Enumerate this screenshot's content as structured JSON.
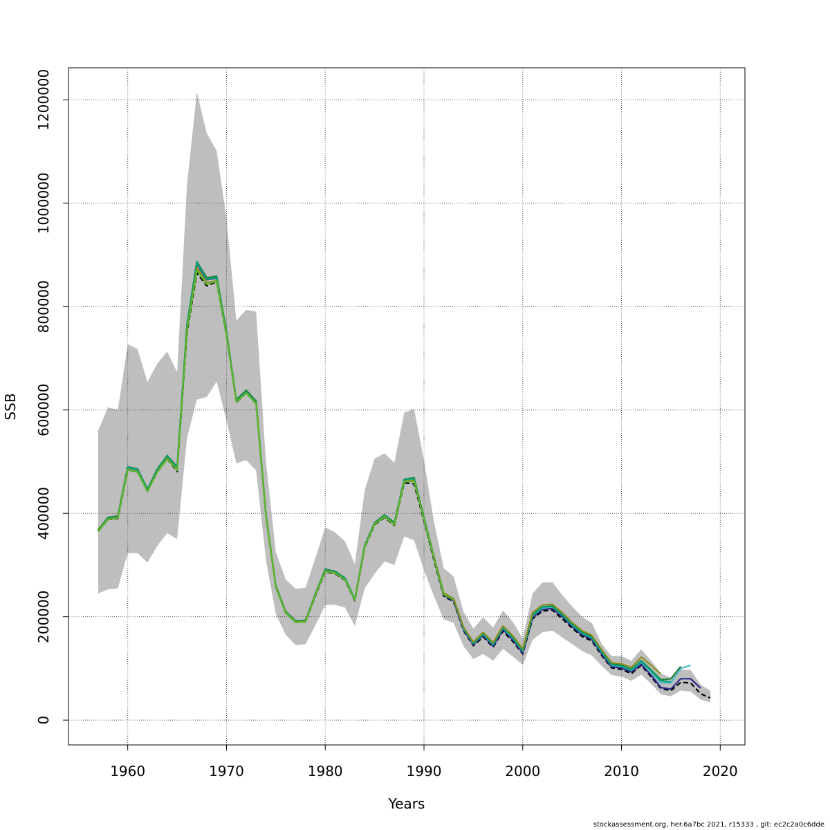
{
  "chart_data": {
    "type": "line",
    "xlabel": "Years",
    "ylabel": "SSB",
    "xlim": [
      1954,
      2022.5
    ],
    "ylim": [
      -48000,
      1262000
    ],
    "x_ticks": [
      1960,
      1970,
      1980,
      1990,
      2000,
      2010,
      2020
    ],
    "x_tick_labels": [
      "1960",
      "1970",
      "1980",
      "1990",
      "2000",
      "2010",
      "2020"
    ],
    "y_ticks": [
      0,
      200000,
      400000,
      600000,
      800000,
      1000000,
      1200000
    ],
    "y_tick_labels": [
      "0",
      "200000",
      "400000",
      "600000",
      "800000",
      "1000000",
      "1200000"
    ],
    "grid": true,
    "confidence_band": {
      "color": "#bebebe",
      "x": [
        1957,
        1958,
        1959,
        1960,
        1961,
        1962,
        1963,
        1964,
        1965,
        1966,
        1967,
        1968,
        1969,
        1970,
        1971,
        1972,
        1973,
        1974,
        1975,
        1976,
        1977,
        1978,
        1979,
        1980,
        1981,
        1982,
        1983,
        1984,
        1985,
        1986,
        1987,
        1988,
        1989,
        1990,
        1991,
        1992,
        1993,
        1994,
        1995,
        1996,
        1997,
        1998,
        1999,
        2000,
        2001,
        2002,
        2003,
        2004,
        2005,
        2006,
        2007,
        2008,
        2009,
        2010,
        2011,
        2012,
        2013,
        2014,
        2015,
        2016,
        2017,
        2018,
        2019
      ],
      "lower": [
        245000,
        253000,
        255000,
        323000,
        323000,
        305000,
        337000,
        362000,
        350000,
        545000,
        620000,
        625000,
        655000,
        580000,
        497000,
        503000,
        483000,
        310000,
        205000,
        165000,
        145000,
        147000,
        183000,
        223000,
        223000,
        218000,
        182000,
        255000,
        283000,
        307000,
        300000,
        355000,
        348000,
        290000,
        240000,
        195000,
        188000,
        143000,
        118000,
        128000,
        115000,
        138000,
        123000,
        107000,
        155000,
        170000,
        173000,
        160000,
        147000,
        134000,
        125000,
        105000,
        87000,
        84000,
        76000,
        88000,
        70000,
        50000,
        46000,
        57000,
        55000,
        40000,
        34000
      ],
      "upper": [
        560000,
        605000,
        600000,
        727000,
        718000,
        654000,
        690000,
        713000,
        673000,
        1035000,
        1215000,
        1135000,
        1102000,
        970000,
        773000,
        794000,
        790000,
        500000,
        325000,
        272000,
        254000,
        256000,
        313000,
        373000,
        363000,
        346000,
        302000,
        445000,
        506000,
        516000,
        498000,
        595000,
        602000,
        502000,
        385000,
        294000,
        278000,
        210000,
        177000,
        199000,
        179000,
        212000,
        190000,
        158000,
        245000,
        266000,
        267000,
        242000,
        220000,
        200000,
        188000,
        147000,
        124000,
        124000,
        115000,
        137000,
        115000,
        90000,
        82000,
        98000,
        97000,
        69000,
        57000
      ]
    },
    "series": [
      {
        "color": "#000000",
        "dashed": true,
        "x": [
          1957,
          1958,
          1959,
          1960,
          1961,
          1962,
          1963,
          1964,
          1965,
          1966,
          1967,
          1968,
          1969,
          1970,
          1971,
          1972,
          1973,
          1974,
          1975,
          1976,
          1977,
          1978,
          1979,
          1980,
          1981,
          1982,
          1983,
          1984,
          1985,
          1986,
          1987,
          1988,
          1989,
          1990,
          1991,
          1992,
          1993,
          1994,
          1995,
          1996,
          1997,
          1998,
          1999,
          2000,
          2001,
          2002,
          2003,
          2004,
          2005,
          2006,
          2007,
          2008,
          2009,
          2010,
          2011,
          2012,
          2013,
          2014,
          2015,
          2016,
          2017,
          2018,
          2019
        ],
        "values": [
          365000,
          388000,
          390000,
          484000,
          480000,
          443000,
          480000,
          505000,
          481000,
          748000,
          865000,
          840000,
          848000,
          745000,
          615000,
          633000,
          612000,
          395000,
          257000,
          207000,
          189000,
          190000,
          240000,
          287000,
          283000,
          271000,
          231000,
          334000,
          378000,
          392000,
          377000,
          459000,
          457000,
          385000,
          310000,
          240000,
          229000,
          173000,
          144000,
          161000,
          141000,
          172000,
          152000,
          128000,
          196000,
          211000,
          213000,
          196000,
          178000,
          162000,
          153000,
          125000,
          101000,
          98000,
          90000,
          106000,
          84000,
          61000,
          57000,
          73000,
          72000,
          51000,
          43000
        ]
      },
      {
        "color": "#28288c",
        "dashed": false,
        "x": [
          1957,
          1958,
          1959,
          1960,
          1961,
          1962,
          1963,
          1964,
          1965,
          1966,
          1967,
          1968,
          1969,
          1970,
          1971,
          1972,
          1973,
          1974,
          1975,
          1976,
          1977,
          1978,
          1979,
          1980,
          1981,
          1982,
          1983,
          1984,
          1985,
          1986,
          1987,
          1988,
          1989,
          1990,
          1991,
          1992,
          1993,
          1994,
          1995,
          1996,
          1997,
          1998,
          1999,
          2000,
          2001,
          2002,
          2003,
          2004,
          2005,
          2006,
          2007,
          2008,
          2009,
          2010,
          2011,
          2012,
          2013,
          2014,
          2015,
          2016,
          2017,
          2018
        ],
        "values": [
          366000,
          390000,
          393000,
          487000,
          483000,
          445000,
          483000,
          509000,
          487000,
          760000,
          882000,
          852000,
          855000,
          748000,
          617000,
          634000,
          614000,
          396000,
          258000,
          208000,
          190000,
          191000,
          242000,
          289000,
          285000,
          273000,
          232000,
          336000,
          380000,
          394000,
          379000,
          463000,
          466000,
          389000,
          313000,
          242000,
          231000,
          175000,
          146000,
          164000,
          143000,
          175000,
          155000,
          130000,
          199000,
          214000,
          216000,
          200000,
          181000,
          165000,
          156000,
          128000,
          103000,
          101000,
          93000,
          108000,
          87000,
          63000,
          60000,
          80000,
          80000,
          62000
        ]
      },
      {
        "color": "#48b8c0",
        "dashed": false,
        "x": [
          1957,
          1958,
          1959,
          1960,
          1961,
          1962,
          1963,
          1964,
          1965,
          1966,
          1967,
          1968,
          1969,
          1970,
          1971,
          1972,
          1973,
          1974,
          1975,
          1976,
          1977,
          1978,
          1979,
          1980,
          1981,
          1982,
          1983,
          1984,
          1985,
          1986,
          1987,
          1988,
          1989,
          1990,
          1991,
          1992,
          1993,
          1994,
          1995,
          1996,
          1997,
          1998,
          1999,
          2000,
          2001,
          2002,
          2003,
          2004,
          2005,
          2006,
          2007,
          2008,
          2009,
          2010,
          2011,
          2012,
          2013,
          2014,
          2015,
          2016,
          2017
        ],
        "values": [
          367000,
          391000,
          394000,
          488000,
          484000,
          446000,
          484000,
          510000,
          488000,
          762000,
          884000,
          854000,
          857000,
          750000,
          618000,
          636000,
          615000,
          397000,
          259000,
          209000,
          191000,
          192000,
          243000,
          290000,
          286000,
          274000,
          233000,
          337000,
          381000,
          395000,
          380000,
          464000,
          467000,
          390000,
          315000,
          244000,
          233000,
          177000,
          148000,
          166000,
          146000,
          178000,
          158000,
          133000,
          202000,
          217000,
          219000,
          203000,
          184000,
          168000,
          159000,
          131000,
          106000,
          104000,
          96000,
          112000,
          93000,
          72000,
          72000,
          100000,
          106000
        ]
      },
      {
        "color": "#1f7f3a",
        "dashed": false,
        "x": [
          1957,
          1958,
          1959,
          1960,
          1961,
          1962,
          1963,
          1964,
          1965,
          1966,
          1967,
          1968,
          1969,
          1970,
          1971,
          1972,
          1973,
          1974,
          1975,
          1976,
          1977,
          1978,
          1979,
          1980,
          1981,
          1982,
          1983,
          1984,
          1985,
          1986,
          1987,
          1988,
          1989,
          1990,
          1991,
          1992,
          1993,
          1994,
          1995,
          1996,
          1997,
          1998,
          1999,
          2000,
          2001,
          2002,
          2003,
          2004,
          2005,
          2006,
          2007,
          2008,
          2009,
          2010,
          2011,
          2012,
          2013,
          2014,
          2015,
          2016
        ],
        "values": [
          368000,
          392000,
          395000,
          490000,
          486000,
          447000,
          486000,
          512000,
          490000,
          765000,
          887000,
          856000,
          859000,
          752000,
          620000,
          638000,
          617000,
          398000,
          260000,
          210000,
          192000,
          193000,
          244000,
          292000,
          288000,
          275000,
          234000,
          338000,
          382000,
          397000,
          382000,
          466000,
          469000,
          392000,
          317000,
          246000,
          235000,
          179000,
          150000,
          168000,
          148000,
          180000,
          160000,
          135000,
          204000,
          219000,
          221000,
          205000,
          186000,
          170000,
          161000,
          133000,
          108000,
          106000,
          98000,
          115000,
          97000,
          78000,
          80000,
          104000
        ]
      },
      {
        "color": "#00a070",
        "dashed": false,
        "x": [
          1957,
          1958,
          1959,
          1960,
          1961,
          1962,
          1963,
          1964,
          1965,
          1966,
          1967,
          1968,
          1969,
          1970,
          1971,
          1972,
          1973,
          1974,
          1975,
          1976,
          1977,
          1978,
          1979,
          1980,
          1981,
          1982,
          1983,
          1984,
          1985,
          1986,
          1987,
          1988,
          1989,
          1990,
          1991,
          1992,
          1993,
          1994,
          1995,
          1996,
          1997,
          1998,
          1999,
          2000,
          2001,
          2002,
          2003,
          2004,
          2005,
          2006,
          2007,
          2008,
          2009,
          2010,
          2011,
          2012,
          2013,
          2014,
          2015
        ],
        "values": [
          366000,
          391000,
          393000,
          489000,
          485000,
          446000,
          485000,
          511000,
          489000,
          763000,
          885000,
          853000,
          856000,
          749000,
          617000,
          635000,
          614000,
          397000,
          259000,
          209000,
          191000,
          192000,
          243000,
          291000,
          287000,
          274000,
          233000,
          337000,
          381000,
          396000,
          381000,
          465000,
          468000,
          391000,
          315000,
          245000,
          234000,
          178000,
          149000,
          167000,
          147000,
          179000,
          159000,
          134000,
          203000,
          219000,
          220000,
          204000,
          185000,
          169000,
          160000,
          132000,
          107000,
          105000,
          97000,
          114000,
          96000,
          76000,
          74000
        ]
      },
      {
        "color": "#8c8c1e",
        "dashed": false,
        "x": [
          1957,
          1958,
          1959,
          1960,
          1961,
          1962,
          1963,
          1964,
          1965,
          1966,
          1967,
          1968,
          1969,
          1970,
          1971,
          1972,
          1973,
          1974,
          1975,
          1976,
          1977,
          1978,
          1979,
          1980,
          1981,
          1982,
          1983,
          1984,
          1985,
          1986,
          1987,
          1988,
          1989,
          1990,
          1991,
          1992,
          1993,
          1994,
          1995,
          1996,
          1997,
          1998,
          1999,
          2000,
          2001,
          2002,
          2003,
          2004,
          2005,
          2006,
          2007,
          2008,
          2009,
          2010,
          2011,
          2012,
          2013,
          2014
        ],
        "values": [
          366000,
          389000,
          392000,
          485000,
          481000,
          443000,
          481000,
          507000,
          484000,
          755000,
          875000,
          846000,
          850000,
          746000,
          616000,
          633000,
          613000,
          396000,
          258000,
          208000,
          190000,
          191000,
          242000,
          289000,
          285000,
          272000,
          232000,
          335000,
          380000,
          394000,
          379000,
          462000,
          464000,
          389000,
          315000,
          246000,
          235000,
          180000,
          151000,
          170000,
          150000,
          182000,
          163000,
          138000,
          208000,
          223000,
          224000,
          208000,
          189000,
          173000,
          164000,
          136000,
          111000,
          109000,
          102000,
          122000,
          106000,
          89000
        ]
      },
      {
        "color": "#5ab82e",
        "dashed": false,
        "x": [
          1957,
          1958,
          1959,
          1960,
          1961,
          1962,
          1963,
          1964,
          1965,
          1966,
          1967,
          1968,
          1969,
          1970,
          1971,
          1972,
          1973,
          1974,
          1975,
          1976,
          1977,
          1978,
          1979,
          1980,
          1981,
          1982,
          1983,
          1984,
          1985,
          1986,
          1987,
          1988,
          1989,
          1990,
          1991,
          1992,
          1993
        ],
        "values": [
          365000,
          388000,
          391000,
          484000,
          480000,
          442000,
          480000,
          505000,
          483000,
          752000,
          870000,
          843000,
          849000,
          746000,
          616000,
          633000,
          612000,
          396000,
          257000,
          207000,
          189000,
          190000,
          241000,
          288000,
          284000,
          272000,
          232000,
          335000,
          379000,
          393000,
          378000,
          461000,
          462000,
          388000,
          313000,
          243000,
          233000
        ]
      }
    ]
  },
  "footer_text": "stockassessment.org, her.6a7bc  2021, r15333 , git: ec2c2a0c6dde"
}
